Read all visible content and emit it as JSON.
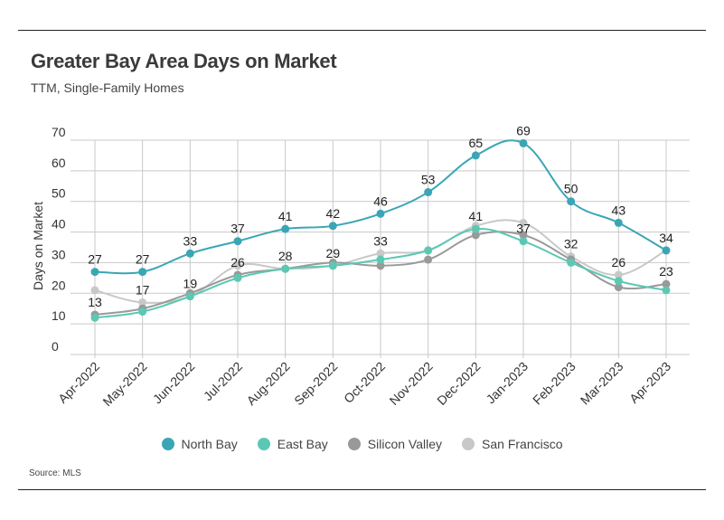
{
  "header": {
    "title": "Greater Bay Area Days on Market",
    "subtitle": "TTM, Single-Family Homes"
  },
  "footer": {
    "source": "Source:  MLS"
  },
  "colors": {
    "north_bay": "#3aa6b5",
    "east_bay": "#5cc8b4",
    "silicon_valley": "#999999",
    "san_francisco": "#c8c8c8"
  },
  "chart_data": {
    "type": "line",
    "title": "Greater Bay Area Days on Market",
    "subtitle": "TTM, Single-Family Homes",
    "xlabel": "",
    "ylabel": "Days on Market",
    "ylim": [
      0,
      70
    ],
    "yticks": [
      0,
      10,
      20,
      30,
      40,
      50,
      60,
      70
    ],
    "grid": true,
    "legend": "bottom-center",
    "categories": [
      "Apr-2022",
      "May-2022",
      "Jun-2022",
      "Jul-2022",
      "Aug-2022",
      "Sep-2022",
      "Oct-2022",
      "Nov-2022",
      "Dec-2022",
      "Jan-2023",
      "Feb-2023",
      "Mar-2023",
      "Apr-2023"
    ],
    "series": [
      {
        "name": "North Bay",
        "color": "#3aa6b5",
        "values": [
          27,
          27,
          33,
          37,
          41,
          42,
          46,
          53,
          65,
          69,
          50,
          43,
          34
        ],
        "labels": [
          true,
          true,
          true,
          true,
          true,
          true,
          true,
          true,
          true,
          true,
          true,
          true,
          true
        ]
      },
      {
        "name": "East Bay",
        "color": "#5cc8b4",
        "values": [
          12,
          14,
          19,
          25,
          28,
          29,
          31,
          34,
          41,
          37,
          30,
          24,
          21
        ],
        "labels": [
          false,
          false,
          false,
          false,
          false,
          false,
          false,
          false,
          true,
          true,
          false,
          false,
          false
        ]
      },
      {
        "name": "Silicon Valley",
        "color": "#999999",
        "values": [
          13,
          15,
          20,
          26,
          28,
          30,
          29,
          31,
          39,
          39,
          31,
          22,
          23
        ],
        "labels": [
          true,
          false,
          false,
          true,
          true,
          false,
          false,
          false,
          false,
          false,
          false,
          false,
          true
        ]
      },
      {
        "name": "San Francisco",
        "color": "#c8c8c8",
        "values": [
          21,
          17,
          19,
          29,
          28,
          29,
          33,
          34,
          42,
          43,
          32,
          26,
          34
        ],
        "labels": [
          false,
          true,
          true,
          false,
          false,
          true,
          true,
          false,
          false,
          false,
          true,
          true,
          false
        ]
      }
    ]
  }
}
